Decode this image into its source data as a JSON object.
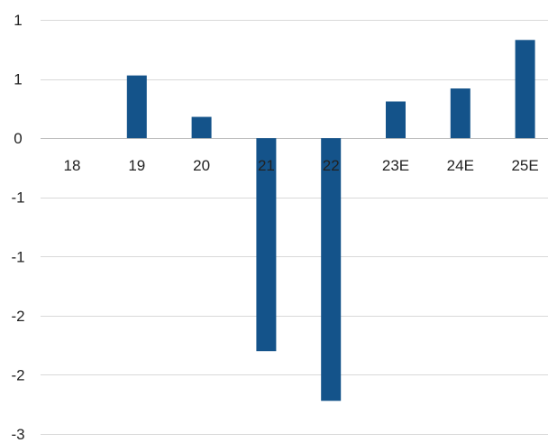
{
  "chart_data": {
    "type": "bar",
    "categories": [
      "18",
      "19",
      "20",
      "21",
      "22",
      "23E",
      "24E",
      "25E"
    ],
    "series": [
      {
        "values": [
          0,
          0.53,
          0.18,
          -1.8,
          -2.22,
          0.31,
          0.42,
          0.83
        ]
      }
    ],
    "y_ticks": [
      {
        "value": 1.0,
        "label": "1"
      },
      {
        "value": 0.5,
        "label": "1"
      },
      {
        "value": 0.0,
        "label": "0"
      },
      {
        "value": -0.5,
        "label": "-1"
      },
      {
        "value": -1.0,
        "label": "-1"
      },
      {
        "value": -1.5,
        "label": "-2"
      },
      {
        "value": -2.0,
        "label": "-2"
      },
      {
        "value": -2.5,
        "label": "-3"
      }
    ],
    "ylim": [
      -2.5,
      1.0
    ],
    "grid": true,
    "title": "",
    "xlabel": "",
    "ylabel": "",
    "colors": {
      "bar": "#14538a",
      "grid": "#d9d9d9",
      "text": "#222222"
    }
  }
}
